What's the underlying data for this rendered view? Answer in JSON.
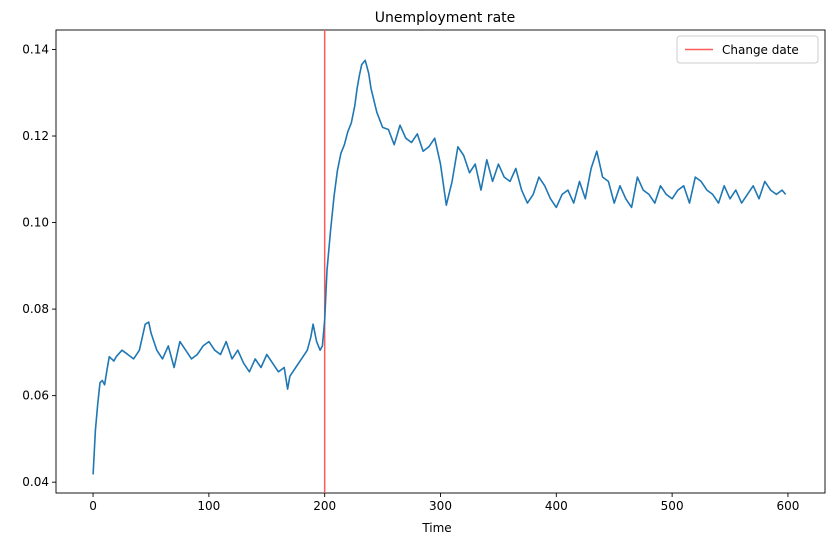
{
  "chart_data": {
    "type": "line",
    "title": "Unemployment rate",
    "xlabel": "Time",
    "ylabel": "",
    "xlim": [
      -32,
      632
    ],
    "ylim": [
      0.0375,
      0.1445
    ],
    "xticks": [
      0,
      100,
      200,
      300,
      400,
      500,
      600
    ],
    "yticks": [
      0.04,
      0.06,
      0.08,
      0.1,
      0.12,
      0.14
    ],
    "ytick_labels": [
      "0.04",
      "0.06",
      "0.08",
      "0.10",
      "0.12",
      "0.14"
    ],
    "grid": false,
    "legend_position": "top-right",
    "series": [
      {
        "name": "",
        "color": "#1f77b4",
        "x": [
          0,
          2,
          4,
          6,
          8,
          10,
          12,
          14,
          16,
          18,
          20,
          25,
          30,
          35,
          40,
          45,
          48,
          50,
          55,
          60,
          65,
          70,
          75,
          80,
          85,
          90,
          95,
          100,
          105,
          110,
          115,
          120,
          125,
          130,
          135,
          140,
          145,
          150,
          155,
          160,
          165,
          168,
          170,
          175,
          180,
          185,
          188,
          190,
          193,
          196,
          198,
          200,
          202,
          205,
          208,
          211,
          214,
          217,
          220,
          223,
          226,
          228,
          230,
          232,
          235,
          238,
          240,
          245,
          250,
          255,
          260,
          265,
          270,
          275,
          280,
          285,
          290,
          295,
          300,
          305,
          310,
          315,
          320,
          325,
          330,
          335,
          340,
          345,
          350,
          355,
          360,
          365,
          370,
          375,
          380,
          385,
          390,
          395,
          400,
          405,
          410,
          415,
          420,
          425,
          430,
          435,
          440,
          445,
          450,
          455,
          460,
          465,
          470,
          475,
          480,
          485,
          490,
          495,
          500,
          505,
          510,
          515,
          520,
          525,
          530,
          535,
          540,
          545,
          550,
          555,
          560,
          565,
          570,
          575,
          580,
          585,
          590,
          595,
          598
        ],
        "y": [
          0.0418,
          0.052,
          0.058,
          0.063,
          0.0635,
          0.0625,
          0.066,
          0.069,
          0.0685,
          0.068,
          0.069,
          0.0705,
          0.0695,
          0.0685,
          0.0705,
          0.0765,
          0.077,
          0.0745,
          0.0705,
          0.0685,
          0.0715,
          0.0665,
          0.0725,
          0.0705,
          0.0685,
          0.0695,
          0.0715,
          0.0725,
          0.0705,
          0.0695,
          0.0725,
          0.0685,
          0.0705,
          0.0675,
          0.0655,
          0.0685,
          0.0665,
          0.0695,
          0.0675,
          0.0655,
          0.0665,
          0.0615,
          0.0645,
          0.0665,
          0.0685,
          0.0705,
          0.0735,
          0.0765,
          0.0725,
          0.0705,
          0.0715,
          0.0775,
          0.089,
          0.098,
          0.106,
          0.112,
          0.116,
          0.118,
          0.121,
          0.123,
          0.127,
          0.131,
          0.134,
          0.1365,
          0.1375,
          0.1345,
          0.131,
          0.1255,
          0.122,
          0.1215,
          0.118,
          0.1225,
          0.1195,
          0.1185,
          0.1205,
          0.1165,
          0.1175,
          0.1195,
          0.1135,
          0.104,
          0.1095,
          0.1175,
          0.1155,
          0.1115,
          0.1135,
          0.1075,
          0.1145,
          0.1095,
          0.1135,
          0.1105,
          0.1095,
          0.1125,
          0.1075,
          0.1045,
          0.1065,
          0.1105,
          0.1085,
          0.1055,
          0.1035,
          0.1065,
          0.1075,
          0.1045,
          0.1095,
          0.1055,
          0.1125,
          0.1165,
          0.1105,
          0.1095,
          0.1045,
          0.1085,
          0.1055,
          0.1035,
          0.1105,
          0.1075,
          0.1065,
          0.1045,
          0.1085,
          0.1065,
          0.1055,
          0.1075,
          0.1085,
          0.1045,
          0.1105,
          0.1095,
          0.1075,
          0.1065,
          0.1045,
          0.1085,
          0.1055,
          0.1075,
          0.1045,
          0.1065,
          0.1085,
          0.1055,
          0.1095,
          0.1075,
          0.1065,
          0.1075,
          0.1065
        ]
      }
    ],
    "vlines": [
      {
        "name": "Change date",
        "x": 200,
        "color": "#ff5a5a"
      }
    ]
  }
}
